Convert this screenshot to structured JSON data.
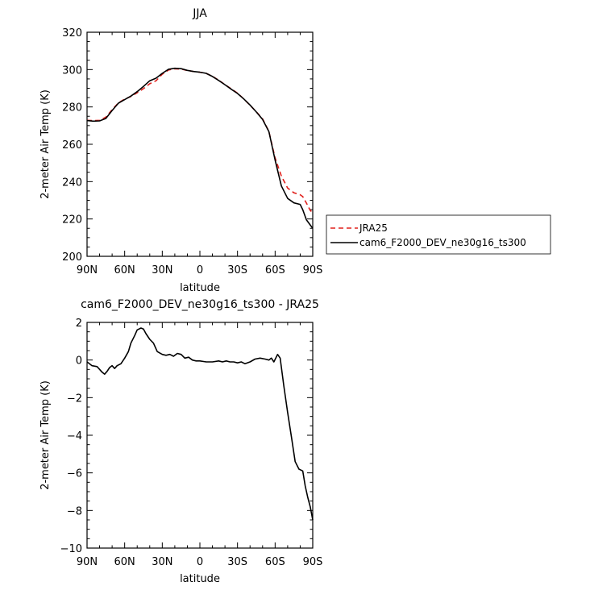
{
  "chart_data": [
    {
      "type": "line",
      "title": "JJA",
      "xlabel": "latitude",
      "ylabel": "2-meter Air Temp (K)",
      "ylim": [
        200,
        320
      ],
      "yticks": [
        200,
        220,
        240,
        260,
        280,
        300,
        320
      ],
      "xlim": [
        90,
        -90
      ],
      "xticks": [
        90,
        60,
        30,
        0,
        -30,
        -60,
        -90
      ],
      "xtick_labels": [
        "90N",
        "60N",
        "30N",
        "0",
        "30S",
        "60S",
        "90S"
      ],
      "legend_position": "right",
      "x": [
        90,
        85,
        80,
        75,
        70,
        65,
        60,
        55,
        50,
        45,
        40,
        35,
        30,
        25,
        20,
        15,
        10,
        5,
        0,
        -5,
        -10,
        -15,
        -20,
        -25,
        -30,
        -35,
        -40,
        -45,
        -50,
        -55,
        -60,
        -65,
        -70,
        -75,
        -80,
        -82,
        -85,
        -88,
        -90
      ],
      "series": [
        {
          "name": "JRA25",
          "color": "#e0201c",
          "dash": "dashed",
          "values": [
            272.8,
            272.7,
            272.8,
            274.5,
            278.5,
            282.2,
            284.2,
            285.6,
            287.6,
            289.8,
            292.4,
            294.0,
            297.5,
            299.8,
            300.4,
            300.3,
            299.5,
            299.0,
            298.6,
            298.0,
            296.4,
            294.3,
            292.0,
            289.7,
            287.4,
            284.3,
            280.9,
            277.4,
            273.6,
            266.9,
            252.7,
            243.0,
            236.5,
            234.0,
            233.0,
            232.0,
            228.5,
            224.6,
            223.3
          ]
        },
        {
          "name": "cam6_F2000_DEV_ne30g16_ts300",
          "color": "#000000",
          "dash": "solid",
          "values": [
            272.7,
            272.4,
            272.5,
            273.8,
            278.1,
            282.0,
            283.9,
            285.8,
            288.2,
            291.0,
            294.0,
            295.4,
            298.0,
            300.2,
            300.7,
            300.5,
            299.6,
            299.0,
            298.6,
            298.0,
            296.3,
            294.2,
            291.9,
            289.5,
            287.2,
            284.3,
            281.0,
            277.3,
            273.3,
            266.8,
            251.6,
            237.7,
            231.0,
            228.6,
            227.8,
            225.0,
            219.5,
            216.8,
            215.0
          ]
        }
      ]
    },
    {
      "type": "line",
      "title": "cam6_F2000_DEV_ne30g16_ts300 - JRA25",
      "xlabel": "latitude",
      "ylabel": "2-meter Air Temp (K)",
      "ylim": [
        -10,
        2
      ],
      "yticks": [
        -10,
        -8,
        -6,
        -4,
        -2,
        0,
        2
      ],
      "xlim": [
        90,
        -90
      ],
      "xticks": [
        90,
        60,
        30,
        0,
        -30,
        -60,
        -90
      ],
      "xtick_labels": [
        "90N",
        "60N",
        "30N",
        "0",
        "30S",
        "60S",
        "90S"
      ],
      "x": [
        90,
        86,
        82,
        80,
        78,
        76,
        74,
        72,
        70,
        68,
        66,
        63,
        60,
        57,
        55,
        52,
        50,
        47,
        45,
        43,
        40,
        37,
        34,
        30,
        27,
        24,
        21,
        18,
        15,
        12,
        9,
        6,
        3,
        0,
        -5,
        -10,
        -15,
        -18,
        -21,
        -24,
        -27,
        -30,
        -33,
        -36,
        -40,
        -44,
        -48,
        -52,
        -55,
        -57,
        -59,
        -62,
        -64,
        -67,
        -70,
        -73,
        -76,
        -79,
        -82,
        -84,
        -86,
        -88,
        -90
      ],
      "series": [
        {
          "name": "",
          "color": "#000000",
          "values": [
            -0.1,
            -0.3,
            -0.35,
            -0.5,
            -0.65,
            -0.75,
            -0.6,
            -0.4,
            -0.3,
            -0.45,
            -0.3,
            -0.2,
            0.1,
            0.45,
            0.9,
            1.3,
            1.6,
            1.7,
            1.65,
            1.4,
            1.1,
            0.9,
            0.45,
            0.3,
            0.25,
            0.3,
            0.2,
            0.35,
            0.3,
            0.1,
            0.15,
            0.0,
            -0.05,
            -0.05,
            -0.1,
            -0.1,
            -0.05,
            -0.1,
            -0.05,
            -0.1,
            -0.1,
            -0.15,
            -0.1,
            -0.2,
            -0.1,
            0.05,
            0.1,
            0.05,
            0.0,
            0.1,
            -0.1,
            0.3,
            0.1,
            -1.4,
            -2.8,
            -4.1,
            -5.4,
            -5.8,
            -5.9,
            -6.7,
            -7.3,
            -7.8,
            -8.5
          ]
        }
      ]
    }
  ]
}
